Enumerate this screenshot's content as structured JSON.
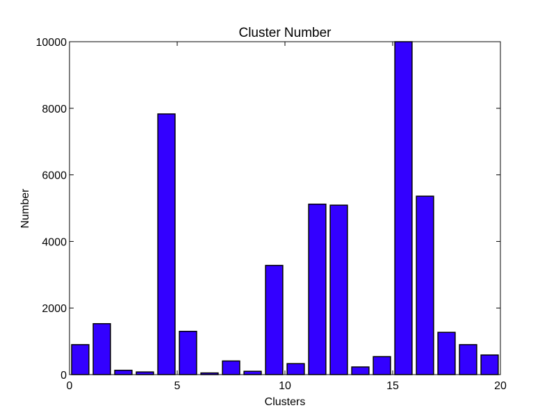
{
  "chart_data": {
    "type": "bar",
    "title": "Cluster Number",
    "xlabel": "Clusters",
    "ylabel": "Number",
    "xlim": [
      0,
      20
    ],
    "ylim": [
      0,
      10000
    ],
    "xticks": [
      0,
      5,
      10,
      15,
      20
    ],
    "yticks": [
      0,
      2000,
      4000,
      6000,
      8000,
      10000
    ],
    "bar_color": "#3300ff",
    "grid": false,
    "series": [
      {
        "x": [
          0.5,
          1.5,
          2.5,
          3.5,
          4.5,
          5.5,
          6.5,
          7.5,
          8.5,
          9.5,
          10.5,
          11.5,
          12.5,
          13.5,
          14.5,
          15.5,
          16.5,
          17.5,
          18.5,
          19.5
        ],
        "values": [
          900,
          1530,
          130,
          80,
          7830,
          1300,
          50,
          410,
          100,
          3280,
          330,
          5120,
          5090,
          230,
          540,
          10000,
          5360,
          1270,
          900,
          590
        ]
      }
    ]
  }
}
